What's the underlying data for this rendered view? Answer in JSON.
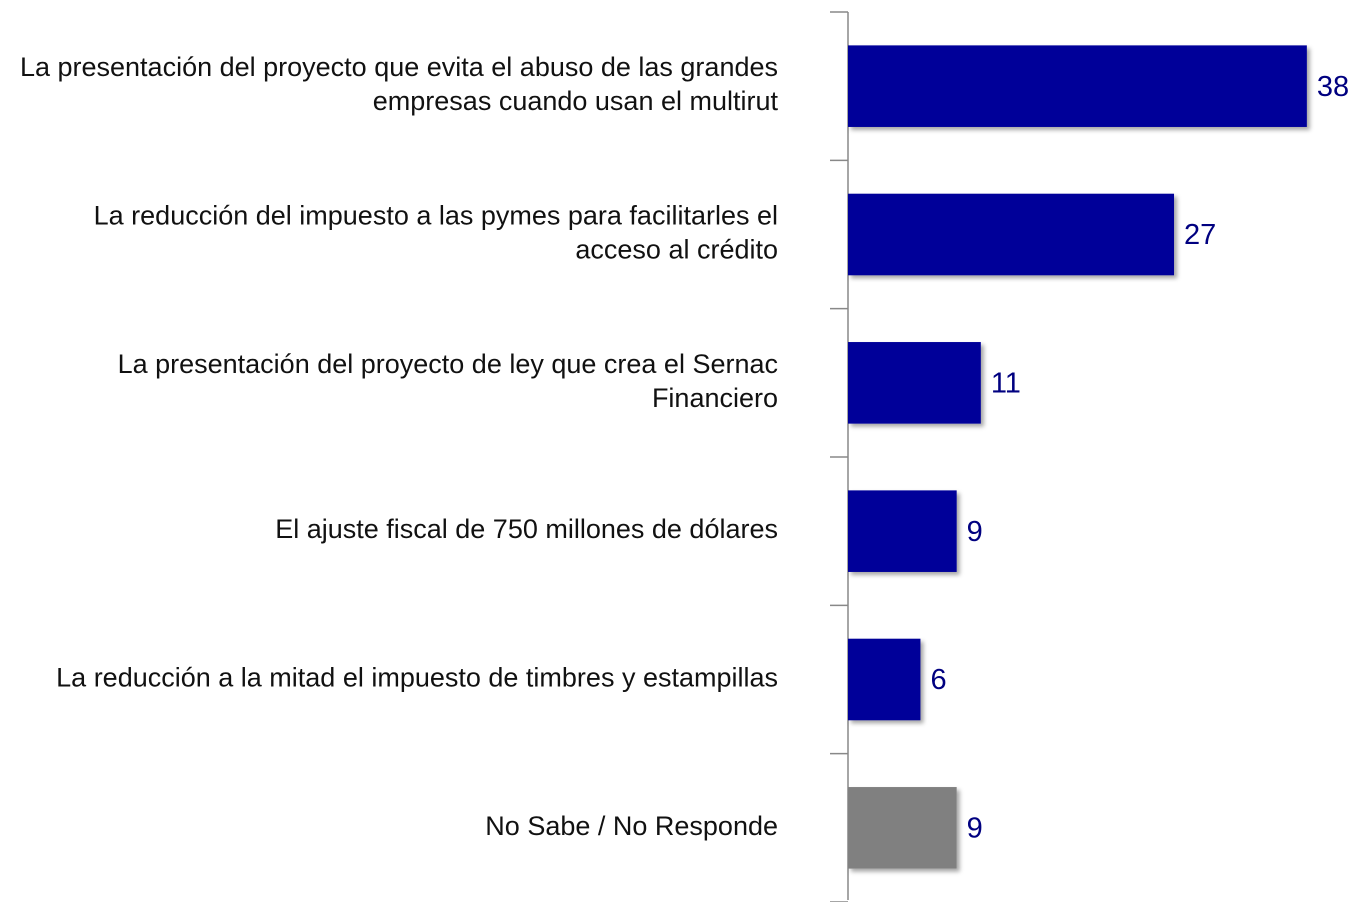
{
  "chart_data": {
    "type": "barh",
    "categories": [
      "La presentación del proyecto que evita el abuso de las grandes empresas cuando usan el multirut",
      "La reducción del impuesto a las pymes para facilitarles el acceso al crédito",
      "La presentación del proyecto de ley que crea el Sernac Financiero",
      "El ajuste fiscal de 750 millones de dólares",
      "La reducción a la mitad el impuesto de timbres y estampillas",
      "No Sabe / No Responde"
    ],
    "values": [
      38,
      27,
      11,
      9,
      6,
      9
    ],
    "colors": [
      "#000099",
      "#000099",
      "#000099",
      "#000099",
      "#000099",
      "#808080"
    ],
    "xlim": [
      0,
      40
    ]
  }
}
